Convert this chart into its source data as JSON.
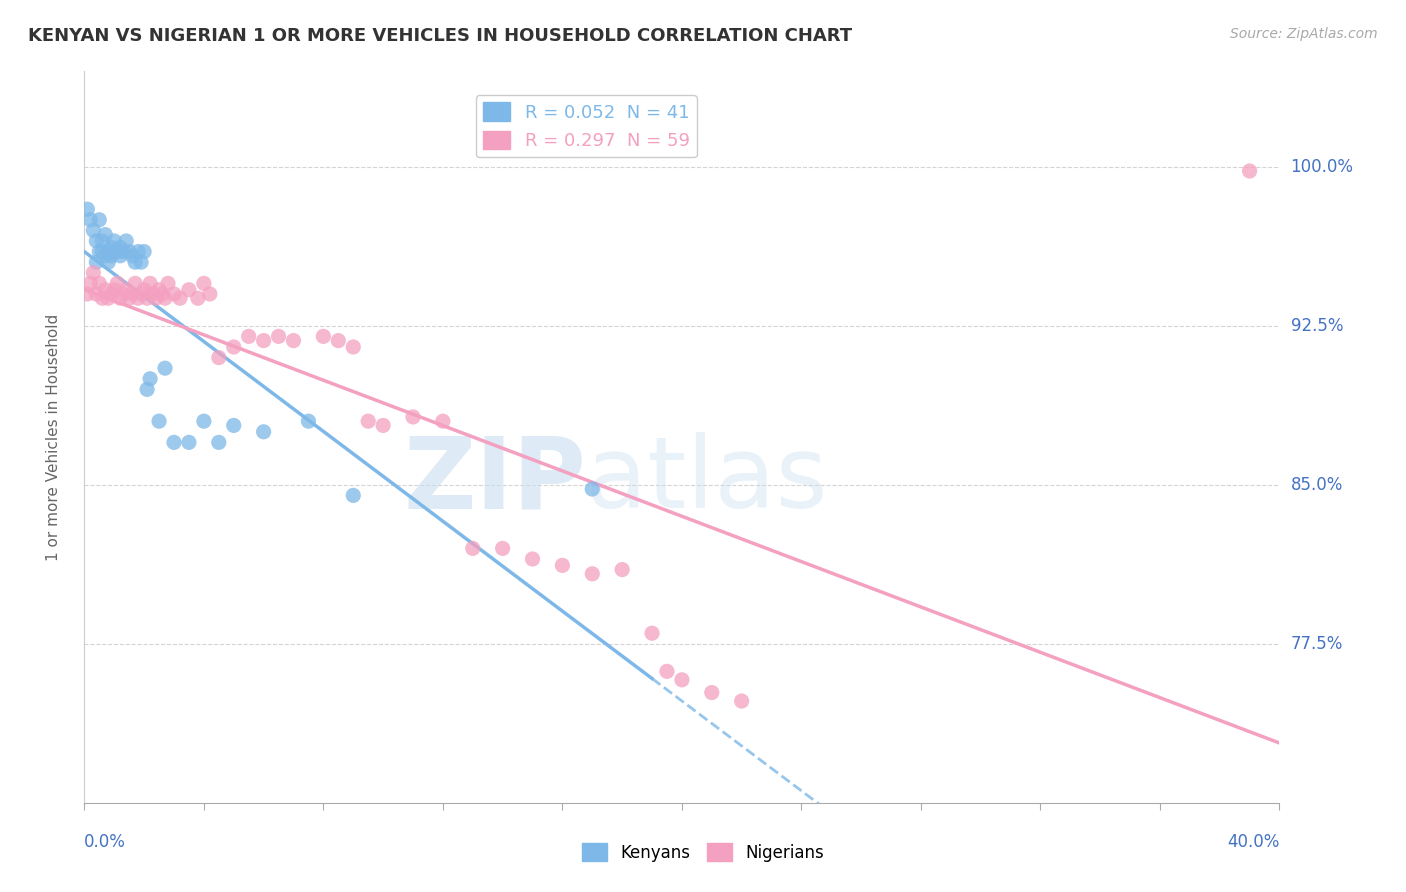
{
  "title": "KENYAN VS NIGERIAN 1 OR MORE VEHICLES IN HOUSEHOLD CORRELATION CHART",
  "source": "Source: ZipAtlas.com",
  "ylabel": "1 or more Vehicles in Household",
  "ytick_labels": [
    "77.5%",
    "85.0%",
    "92.5%",
    "100.0%"
  ],
  "ytick_values": [
    0.775,
    0.85,
    0.925,
    1.0
  ],
  "xlim": [
    0.0,
    0.4
  ],
  "ylim": [
    0.7,
    1.045
  ],
  "kenyan_color": "#7db8e8",
  "nigerian_color": "#f4a0c0",
  "background_color": "#ffffff",
  "grid_color": "#d0d0d0",
  "kenyan_legend": "R = 0.052  N = 41",
  "nigerian_legend": "R = 0.297  N = 59",
  "kenyan_label": "Kenyans",
  "nigerian_label": "Nigerians",
  "kenyan_x": [
    0.001,
    0.002,
    0.003,
    0.004,
    0.004,
    0.005,
    0.005,
    0.006,
    0.006,
    0.007,
    0.007,
    0.008,
    0.008,
    0.009,
    0.009,
    0.01,
    0.01,
    0.011,
    0.012,
    0.012,
    0.013,
    0.014,
    0.015,
    0.016,
    0.017,
    0.018,
    0.019,
    0.02,
    0.021,
    0.022,
    0.025,
    0.027,
    0.03,
    0.035,
    0.04,
    0.045,
    0.05,
    0.06,
    0.075,
    0.09,
    0.17
  ],
  "kenyan_y": [
    0.98,
    0.975,
    0.97,
    0.965,
    0.955,
    0.975,
    0.96,
    0.965,
    0.96,
    0.968,
    0.958,
    0.96,
    0.955,
    0.962,
    0.958,
    0.965,
    0.96,
    0.96,
    0.962,
    0.958,
    0.96,
    0.965,
    0.96,
    0.958,
    0.955,
    0.96,
    0.955,
    0.96,
    0.895,
    0.9,
    0.88,
    0.905,
    0.87,
    0.87,
    0.88,
    0.87,
    0.878,
    0.875,
    0.88,
    0.845,
    0.848
  ],
  "nigerian_x": [
    0.001,
    0.002,
    0.003,
    0.004,
    0.005,
    0.006,
    0.007,
    0.008,
    0.009,
    0.01,
    0.011,
    0.012,
    0.013,
    0.014,
    0.015,
    0.016,
    0.017,
    0.018,
    0.019,
    0.02,
    0.021,
    0.022,
    0.023,
    0.024,
    0.025,
    0.026,
    0.027,
    0.028,
    0.03,
    0.032,
    0.035,
    0.038,
    0.04,
    0.042,
    0.045,
    0.05,
    0.055,
    0.06,
    0.065,
    0.07,
    0.08,
    0.085,
    0.09,
    0.095,
    0.1,
    0.11,
    0.12,
    0.13,
    0.14,
    0.15,
    0.16,
    0.17,
    0.18,
    0.19,
    0.195,
    0.2,
    0.21,
    0.22,
    0.39
  ],
  "nigerian_y": [
    0.94,
    0.945,
    0.95,
    0.94,
    0.945,
    0.938,
    0.942,
    0.938,
    0.94,
    0.942,
    0.945,
    0.938,
    0.94,
    0.942,
    0.938,
    0.94,
    0.945,
    0.938,
    0.94,
    0.942,
    0.938,
    0.945,
    0.94,
    0.938,
    0.942,
    0.94,
    0.938,
    0.945,
    0.94,
    0.938,
    0.942,
    0.938,
    0.945,
    0.94,
    0.91,
    0.915,
    0.92,
    0.918,
    0.92,
    0.918,
    0.92,
    0.918,
    0.915,
    0.88,
    0.878,
    0.882,
    0.88,
    0.82,
    0.82,
    0.815,
    0.812,
    0.808,
    0.81,
    0.78,
    0.762,
    0.758,
    0.752,
    0.748,
    0.998
  ]
}
